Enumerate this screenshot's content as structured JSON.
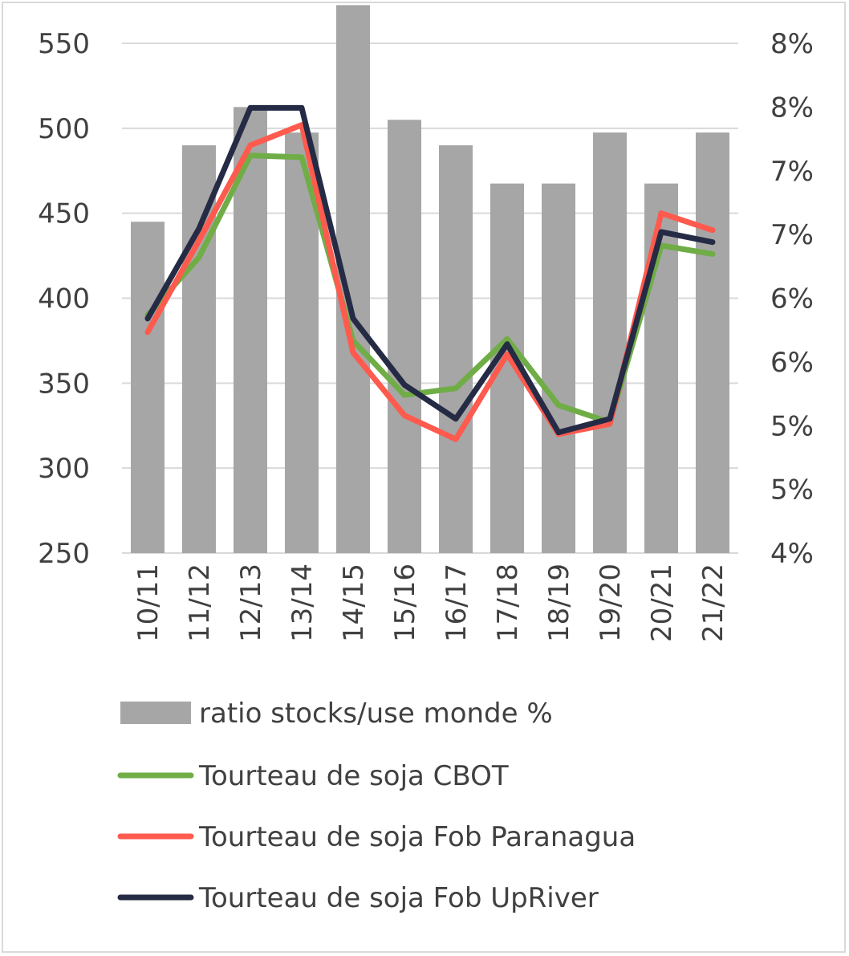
{
  "chart_data": {
    "type": "bar",
    "categories": [
      "10/11",
      "11/12",
      "12/13",
      "13/14",
      "14/15",
      "15/16",
      "16/17",
      "17/18",
      "18/19",
      "19/20",
      "20/21",
      "21/22"
    ],
    "left_axis": {
      "ylim": [
        250,
        550
      ],
      "ticks": [
        "550",
        "500",
        "450",
        "400",
        "350",
        "300",
        "250"
      ]
    },
    "right_axis": {
      "ylim": [
        4,
        8
      ],
      "ticks": [
        "8%",
        "8%",
        "7%",
        "7%",
        "6%",
        "6%",
        "5%",
        "5%",
        "4%"
      ]
    },
    "grid": true,
    "legend_position": "bottom",
    "series": [
      {
        "name": "ratio stocks/use monde %",
        "kind": "bar",
        "axis": "right",
        "color": "#a6a6a6",
        "values": [
          6.6,
          7.2,
          7.5,
          7.3,
          8.3,
          7.4,
          7.2,
          6.9,
          6.9,
          7.3,
          6.9,
          7.3
        ]
      },
      {
        "name": "Tourteau de soja CBOT",
        "kind": "line",
        "axis": "left",
        "color": "#70ad47",
        "values": [
          390,
          424,
          484,
          483,
          375,
          343,
          347,
          376,
          337,
          327,
          431,
          426
        ]
      },
      {
        "name": "Tourteau de soja Fob Paranagua",
        "kind": "line",
        "axis": "left",
        "color": "#ff5a4e",
        "values": [
          380,
          434,
          490,
          502,
          368,
          331,
          317,
          367,
          320,
          326,
          450,
          440
        ]
      },
      {
        "name": "Tourteau de soja Fob UpRiver",
        "kind": "line",
        "axis": "left",
        "color": "#262b45",
        "values": [
          388,
          441,
          512,
          512,
          388,
          349,
          329,
          373,
          321,
          329,
          439,
          433
        ]
      }
    ]
  }
}
